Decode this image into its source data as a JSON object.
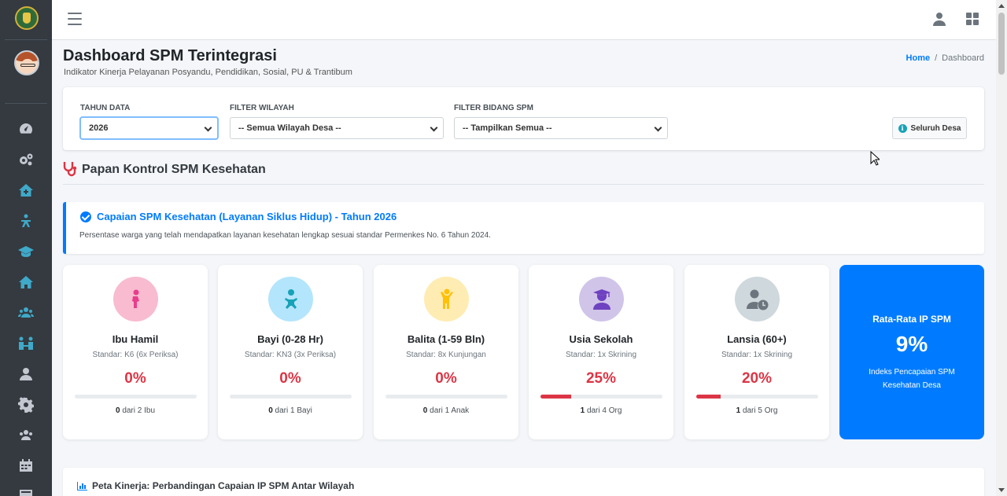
{
  "sidebar": {
    "logo_icon": "regency-emblem-icon",
    "avatar_icon": "user-avatar",
    "items": [
      {
        "icon": "tachometer-icon",
        "active": false
      },
      {
        "icon": "cogs-icon",
        "active": false
      },
      {
        "icon": "house-medical-icon",
        "active": true
      },
      {
        "icon": "person-chalkboard-icon",
        "active": true
      },
      {
        "icon": "graduation-cap-icon",
        "active": true
      },
      {
        "icon": "home-icon",
        "active": true
      },
      {
        "icon": "users-icon",
        "active": true
      },
      {
        "icon": "people-arrows-icon",
        "active": true
      },
      {
        "icon": "user-icon",
        "active": false
      },
      {
        "icon": "cog-icon",
        "active": false
      },
      {
        "icon": "users-group-icon",
        "active": false
      },
      {
        "icon": "calendar-icon",
        "active": false
      },
      {
        "icon": "newspaper-icon",
        "active": false
      }
    ]
  },
  "header": {
    "title": "Dashboard SPM Terintegrasi",
    "subtitle": "Indikator Kinerja Pelayanan Posyandu, Pendidikan, Sosial, PU & Trantibum",
    "breadcrumb": {
      "home": "Home",
      "separator": "/",
      "current": "Dashboard"
    }
  },
  "filters": {
    "year": {
      "label": "TAHUN DATA",
      "value": "2026"
    },
    "region": {
      "label": "FILTER WILAYAH",
      "value": "-- Semua Wilayah Desa --"
    },
    "field": {
      "label": "FILTER BIDANG SPM",
      "value": "-- Tampilkan Semua --"
    },
    "scope_button": "Seluruh Desa"
  },
  "section": {
    "title": "Papan Kontrol SPM Kesehatan"
  },
  "callout": {
    "title": "Capaian SPM Kesehatan (Layanan Siklus Hidup) - Tahun 2026",
    "description": "Persentase warga yang telah mendapatkan layanan kesehatan lengkap sesuai standar Permenkes No. 6 Tahun 2024."
  },
  "cards": [
    {
      "name": "Ibu Hamil",
      "standard": "Standar: K6 (6x Periksa)",
      "percent": "0%",
      "progress": 0,
      "count": "0",
      "count_suffix": "dari 2 Ibu",
      "icon": "pregnant-woman-icon",
      "icon_color": "#e83e8c",
      "icon_bg": "#f8bbd0"
    },
    {
      "name": "Bayi (0-28 Hr)",
      "standard": "Standar: KN3 (3x Periksa)",
      "percent": "0%",
      "progress": 0,
      "count": "0",
      "count_suffix": "dari 1 Bayi",
      "icon": "baby-icon",
      "icon_color": "#17a2b8",
      "icon_bg": "#b3e5fc"
    },
    {
      "name": "Balita (1-59 Bln)",
      "standard": "Standar: 8x Kunjungan",
      "percent": "0%",
      "progress": 0,
      "count": "0",
      "count_suffix": "dari 1 Anak",
      "icon": "child-icon",
      "icon_color": "#ffc107",
      "icon_bg": "#ffecb3"
    },
    {
      "name": "Usia Sekolah",
      "standard": "Standar: 1x Skrining",
      "percent": "25%",
      "progress": 25,
      "count": "1",
      "count_suffix": "dari 4 Org",
      "icon": "user-graduate-icon",
      "icon_color": "#6f42c1",
      "icon_bg": "#d1c4e9"
    },
    {
      "name": "Lansia (60+)",
      "standard": "Standar: 1x Skrining",
      "percent": "20%",
      "progress": 20,
      "count": "1",
      "count_suffix": "dari 5 Org",
      "icon": "user-clock-icon",
      "icon_color": "#6c757d",
      "icon_bg": "#cfd8dc"
    }
  ],
  "average": {
    "title": "Rata-Rata IP SPM",
    "value": "9%",
    "description": "Indeks Pencapaian SPM Kesehatan Desa"
  },
  "bottom": {
    "title": "Peta Kinerja: Perbandingan Capaian IP SPM Antar Wilayah",
    "subtitle": ""
  },
  "colors": {
    "primary": "#007bff",
    "danger": "#dc3545",
    "sidebar": "#343a40"
  }
}
